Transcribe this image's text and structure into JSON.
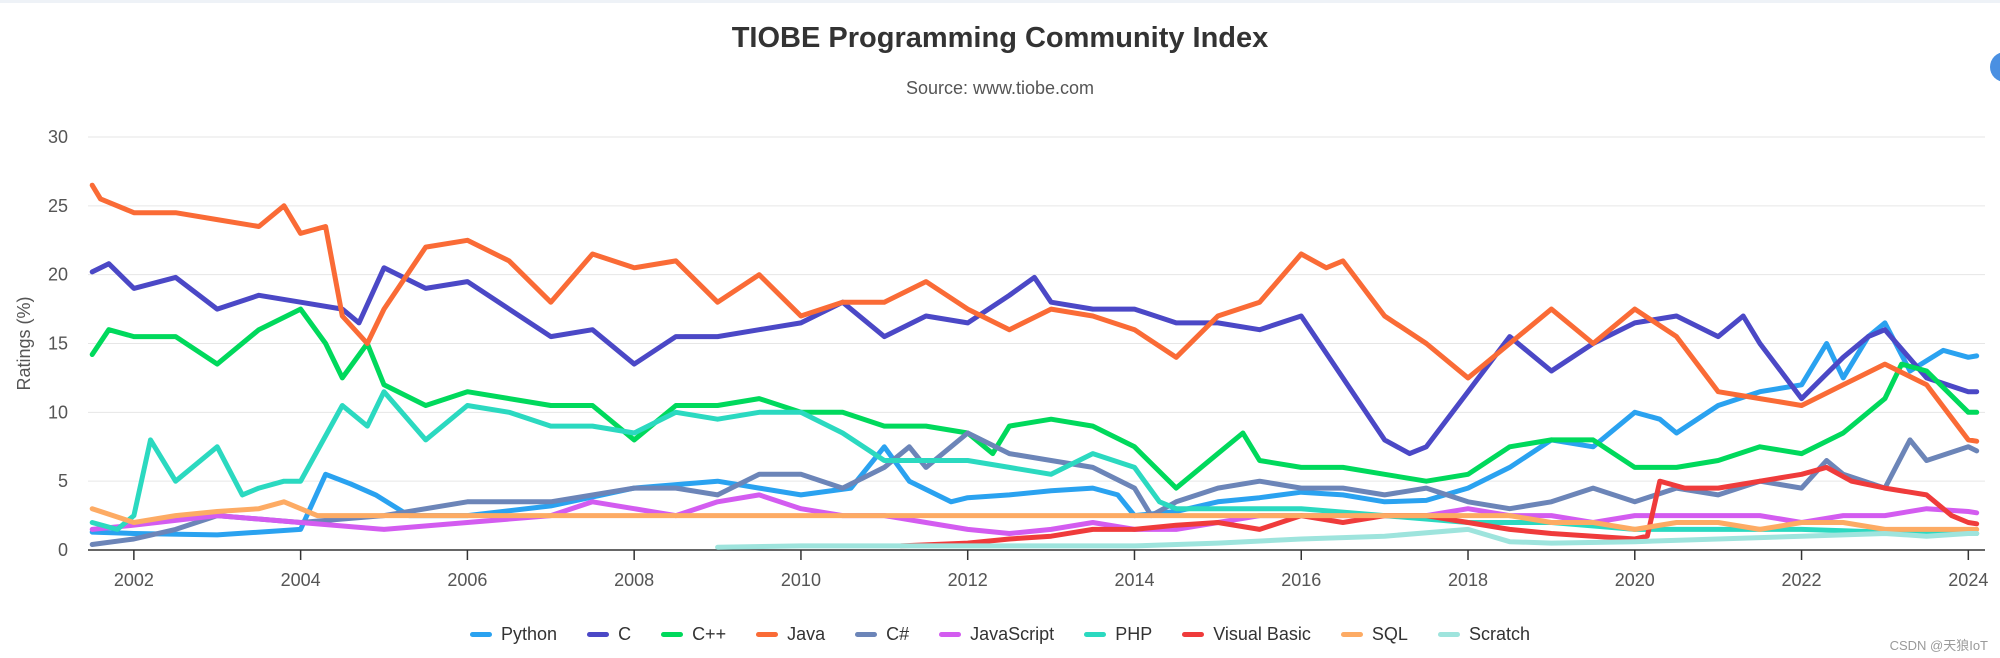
{
  "chart_data": {
    "type": "line",
    "title": "TIOBE Programming Community Index",
    "subtitle": "Source: www.tiobe.com",
    "ylabel": "Ratings (%)",
    "xlabel": "",
    "xlim": [
      2001.45,
      2024.2
    ],
    "ylim": [
      0,
      30
    ],
    "yticks": [
      "0",
      "5",
      "10",
      "15",
      "20",
      "25",
      "30"
    ],
    "xticks": [
      "2002",
      "2004",
      "2006",
      "2008",
      "2010",
      "2012",
      "2014",
      "2016",
      "2018",
      "2020",
      "2022",
      "2024"
    ],
    "grid": true,
    "legend_position": "bottom",
    "series": [
      {
        "name": "Python",
        "color": "#2aa2f0",
        "x": [
          2001.5,
          2002,
          2003,
          2004,
          2004.3,
          2004.6,
          2004.9,
          2005.3,
          2006,
          2007,
          2008,
          2009,
          2009.5,
          2010,
          2010.6,
          2011,
          2011.3,
          2011.8,
          2012,
          2012.5,
          2013,
          2013.5,
          2013.8,
          2014,
          2014.5,
          2015,
          2015.5,
          2016,
          2016.5,
          2017,
          2017.5,
          2018,
          2018.5,
          2019,
          2019.5,
          2020,
          2020.3,
          2020.5,
          2021,
          2021.5,
          2022,
          2022.3,
          2022.5,
          2022.8,
          2023,
          2023.3,
          2023.7,
          2024,
          2024.1
        ],
        "y": [
          1.3,
          1.2,
          1.1,
          1.5,
          5.5,
          4.8,
          4.0,
          2.5,
          2.5,
          3.2,
          4.5,
          5.0,
          4.5,
          4.0,
          4.5,
          7.5,
          5.0,
          3.5,
          3.8,
          4.0,
          4.3,
          4.5,
          4.0,
          2.5,
          2.8,
          3.5,
          3.8,
          4.2,
          4.0,
          3.5,
          3.6,
          4.5,
          6.0,
          8.0,
          7.5,
          10.0,
          9.5,
          8.5,
          10.5,
          11.5,
          12.0,
          15.0,
          12.5,
          15.5,
          16.5,
          13.0,
          14.5,
          14.0,
          14.1
        ]
      },
      {
        "name": "C",
        "color": "#4b48c6",
        "x": [
          2001.5,
          2001.7,
          2002,
          2002.5,
          2003,
          2003.5,
          2004,
          2004.5,
          2004.7,
          2005,
          2005.5,
          2006,
          2006.5,
          2007,
          2007.5,
          2008,
          2008.5,
          2009,
          2009.5,
          2010,
          2010.5,
          2011,
          2011.5,
          2012,
          2012.5,
          2012.8,
          2013,
          2013.5,
          2014,
          2014.5,
          2015,
          2015.5,
          2016,
          2016.5,
          2017,
          2017.3,
          2017.5,
          2018,
          2018.5,
          2019,
          2019.5,
          2020,
          2020.5,
          2021,
          2021.3,
          2021.5,
          2022,
          2022.5,
          2022.8,
          2023,
          2023.5,
          2024,
          2024.1
        ],
        "y": [
          20.2,
          20.8,
          19.0,
          19.8,
          17.5,
          18.5,
          18.0,
          17.5,
          16.5,
          20.5,
          19.0,
          19.5,
          17.5,
          15.5,
          16.0,
          13.5,
          15.5,
          15.5,
          16.0,
          16.5,
          18.0,
          15.5,
          17.0,
          16.5,
          18.5,
          19.8,
          18.0,
          17.5,
          17.5,
          16.5,
          16.5,
          16.0,
          17.0,
          12.5,
          8.0,
          7.0,
          7.5,
          11.5,
          15.5,
          13.0,
          15.0,
          16.5,
          17.0,
          15.5,
          17.0,
          15.0,
          11.0,
          14.0,
          15.5,
          16.0,
          12.5,
          11.5,
          11.5
        ]
      },
      {
        "name": "C++",
        "color": "#00d95c",
        "x": [
          2001.5,
          2001.7,
          2002,
          2002.5,
          2003,
          2003.5,
          2004,
          2004.3,
          2004.5,
          2004.8,
          2005,
          2005.5,
          2006,
          2007,
          2007.5,
          2008,
          2008.5,
          2009,
          2009.5,
          2010,
          2010.5,
          2011,
          2011.5,
          2012,
          2012.3,
          2012.5,
          2013,
          2013.5,
          2014,
          2014.5,
          2015,
          2015.3,
          2015.5,
          2016,
          2016.5,
          2017,
          2017.5,
          2018,
          2018.5,
          2019,
          2019.5,
          2020,
          2020.5,
          2021,
          2021.5,
          2022,
          2022.5,
          2023,
          2023.2,
          2023.5,
          2024,
          2024.1
        ],
        "y": [
          14.2,
          16.0,
          15.5,
          15.5,
          13.5,
          16.0,
          17.5,
          15.0,
          12.5,
          15.0,
          12.0,
          10.5,
          11.5,
          10.5,
          10.5,
          8.0,
          10.5,
          10.5,
          11.0,
          10.0,
          10.0,
          9.0,
          9.0,
          8.5,
          7.0,
          9.0,
          9.5,
          9.0,
          7.5,
          4.5,
          7.0,
          8.5,
          6.5,
          6.0,
          6.0,
          5.5,
          5.0,
          5.5,
          7.5,
          8.0,
          8.0,
          6.0,
          6.0,
          6.5,
          7.5,
          7.0,
          8.5,
          11.0,
          13.5,
          13.0,
          10.0,
          10.0
        ]
      },
      {
        "name": "Java",
        "color": "#fa6b36",
        "x": [
          2001.5,
          2001.6,
          2002,
          2002.5,
          2003,
          2003.5,
          2003.8,
          2004,
          2004.3,
          2004.5,
          2004.8,
          2005,
          2005.5,
          2006,
          2006.5,
          2007,
          2007.5,
          2008,
          2008.5,
          2009,
          2009.5,
          2010,
          2010.5,
          2011,
          2011.5,
          2012,
          2012.5,
          2013,
          2013.5,
          2014,
          2014.5,
          2015,
          2015.5,
          2016,
          2016.3,
          2016.5,
          2017,
          2017.5,
          2018,
          2018.5,
          2019,
          2019.5,
          2020,
          2020.5,
          2021,
          2021.5,
          2022,
          2022.5,
          2023,
          2023.5,
          2024,
          2024.1
        ],
        "y": [
          26.5,
          25.5,
          24.5,
          24.5,
          24.0,
          23.5,
          25.0,
          23.0,
          23.5,
          17.0,
          15.0,
          17.5,
          22.0,
          22.5,
          21.0,
          18.0,
          21.5,
          20.5,
          21.0,
          18.0,
          20.0,
          17.0,
          18.0,
          18.0,
          19.5,
          17.5,
          16.0,
          17.5,
          17.0,
          16.0,
          14.0,
          17.0,
          18.0,
          21.5,
          20.5,
          21.0,
          17.0,
          15.0,
          12.5,
          15.0,
          17.5,
          15.0,
          17.5,
          15.5,
          11.5,
          11.0,
          10.5,
          12.0,
          13.5,
          12.0,
          8.0,
          7.9
        ]
      },
      {
        "name": "C#",
        "color": "#6c85b8",
        "x": [
          2001.5,
          2002,
          2002.5,
          2003,
          2004,
          2005,
          2006,
          2007,
          2008,
          2008.5,
          2009,
          2009.5,
          2010,
          2010.5,
          2011,
          2011.3,
          2011.5,
          2012,
          2012.5,
          2013,
          2013.5,
          2014,
          2014.2,
          2014.5,
          2015,
          2015.5,
          2016,
          2016.5,
          2017,
          2017.5,
          2018,
          2018.5,
          2019,
          2019.5,
          2020,
          2020.5,
          2021,
          2021.5,
          2022,
          2022.3,
          2022.5,
          2023,
          2023.3,
          2023.5,
          2024,
          2024.1
        ],
        "y": [
          0.4,
          0.8,
          1.5,
          2.5,
          2.0,
          2.5,
          3.5,
          3.5,
          4.5,
          4.5,
          4.0,
          5.5,
          5.5,
          4.5,
          6.0,
          7.5,
          6.0,
          8.5,
          7.0,
          6.5,
          6.0,
          4.5,
          2.5,
          3.5,
          4.5,
          5.0,
          4.5,
          4.5,
          4.0,
          4.5,
          3.5,
          3.0,
          3.5,
          4.5,
          3.5,
          4.5,
          4.0,
          5.0,
          4.5,
          6.5,
          5.5,
          4.5,
          8.0,
          6.5,
          7.5,
          7.2
        ]
      },
      {
        "name": "JavaScript",
        "color": "#d35cf0",
        "x": [
          2001.5,
          2002,
          2003,
          2004,
          2005,
          2006,
          2007,
          2007.5,
          2008,
          2008.5,
          2009,
          2009.5,
          2010,
          2010.5,
          2011,
          2011.5,
          2012,
          2012.5,
          2013,
          2013.5,
          2014,
          2014.5,
          2015,
          2015.5,
          2016,
          2016.5,
          2017,
          2017.5,
          2018,
          2018.5,
          2019,
          2019.5,
          2020,
          2020.5,
          2021,
          2021.5,
          2022,
          2022.5,
          2023,
          2023.5,
          2024,
          2024.1
        ],
        "y": [
          1.5,
          1.8,
          2.5,
          2.0,
          1.5,
          2.0,
          2.5,
          3.5,
          3.0,
          2.5,
          3.5,
          4.0,
          3.0,
          2.5,
          2.5,
          2.0,
          1.5,
          1.2,
          1.5,
          2.0,
          1.5,
          1.5,
          2.0,
          2.5,
          2.5,
          2.5,
          2.5,
          2.5,
          3.0,
          2.5,
          2.5,
          2.0,
          2.5,
          2.5,
          2.5,
          2.5,
          2.0,
          2.5,
          2.5,
          3.0,
          2.8,
          2.7
        ]
      },
      {
        "name": "PHP",
        "color": "#2bd9c0",
        "x": [
          2001.5,
          2001.8,
          2002,
          2002.2,
          2002.5,
          2003,
          2003.3,
          2003.5,
          2003.8,
          2004,
          2004.5,
          2004.8,
          2005,
          2005.5,
          2006,
          2006.5,
          2007,
          2007.5,
          2008,
          2008.5,
          2009,
          2009.5,
          2010,
          2010.5,
          2011,
          2011.5,
          2012,
          2012.5,
          2013,
          2013.5,
          2014,
          2014.3,
          2014.5,
          2015,
          2016,
          2017,
          2018,
          2019,
          2020,
          2021,
          2022,
          2023,
          2024,
          2024.1
        ],
        "y": [
          2.0,
          1.5,
          2.5,
          8.0,
          5.0,
          7.5,
          4.0,
          4.5,
          5.0,
          5.0,
          10.5,
          9.0,
          11.5,
          8.0,
          10.5,
          10.0,
          9.0,
          9.0,
          8.5,
          10.0,
          9.5,
          10.0,
          10.0,
          8.5,
          6.5,
          6.5,
          6.5,
          6.0,
          5.5,
          7.0,
          6.0,
          3.5,
          3.0,
          3.0,
          3.0,
          2.5,
          2.0,
          2.0,
          1.5,
          1.5,
          1.5,
          1.3,
          1.2,
          1.2
        ]
      },
      {
        "name": "Visual Basic",
        "color": "#ef3b3b",
        "x": [
          2011.2,
          2012,
          2012.5,
          2013,
          2013.5,
          2014,
          2014.5,
          2015,
          2015.5,
          2016,
          2016.5,
          2017,
          2017.5,
          2018,
          2018.5,
          2019,
          2019.5,
          2020,
          2020.15,
          2020.3,
          2020.6,
          2021,
          2021.5,
          2022,
          2022.3,
          2022.6,
          2023,
          2023.5,
          2023.8,
          2024,
          2024.1
        ],
        "y": [
          0.3,
          0.5,
          0.8,
          1.0,
          1.5,
          1.5,
          1.8,
          2.0,
          1.5,
          2.5,
          2.0,
          2.5,
          2.5,
          2.0,
          1.5,
          1.2,
          1.0,
          0.8,
          1.0,
          5.0,
          4.5,
          4.5,
          5.0,
          5.5,
          6.0,
          5.0,
          4.5,
          4.0,
          2.5,
          2.0,
          1.9
        ]
      },
      {
        "name": "SQL",
        "color": "#fdab64",
        "x": [
          2001.5,
          2002,
          2002.5,
          2003,
          2003.5,
          2003.8,
          2004.2,
          2004.5,
          2005,
          2006,
          2007,
          2008,
          2009,
          2010,
          2011,
          2012,
          2013,
          2014,
          2015,
          2016,
          2017,
          2018,
          2018.5,
          2019,
          2019.5,
          2020,
          2020.5,
          2021,
          2021.5,
          2022,
          2022.5,
          2023,
          2023.5,
          2024,
          2024.1
        ],
        "y": [
          3.0,
          2.0,
          2.5,
          2.8,
          3.0,
          3.5,
          2.5,
          2.5,
          2.5,
          2.5,
          2.5,
          2.5,
          2.5,
          2.5,
          2.5,
          2.5,
          2.5,
          2.5,
          2.5,
          2.5,
          2.5,
          2.5,
          2.5,
          2.0,
          2.0,
          1.5,
          2.0,
          2.0,
          1.5,
          2.0,
          2.0,
          1.5,
          1.5,
          1.5,
          1.5
        ]
      },
      {
        "name": "Scratch",
        "color": "#9ee4dd",
        "x": [
          2009,
          2010,
          2011,
          2012,
          2013,
          2014,
          2015,
          2016,
          2017,
          2018,
          2018.5,
          2019,
          2020,
          2021,
          2022,
          2023,
          2023.5,
          2024,
          2024.1
        ],
        "y": [
          0.2,
          0.3,
          0.3,
          0.3,
          0.3,
          0.3,
          0.5,
          0.8,
          1.0,
          1.5,
          0.6,
          0.5,
          0.6,
          0.8,
          1.0,
          1.2,
          1.0,
          1.2,
          1.2
        ]
      }
    ]
  },
  "watermark": "CSDN @天狼IoT"
}
